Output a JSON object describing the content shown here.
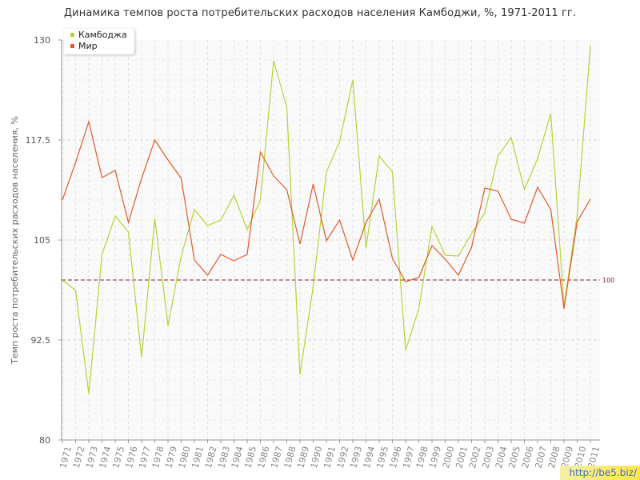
{
  "title": "Динамика темпов роста потребительских расходов населения Камбоджи, %, 1971-2011 гг.",
  "watermark": "http://be5.biz/",
  "chart_data": {
    "type": "line",
    "title": "Динамика темпов роста потребительских расходов населения Камбоджи, %, 1971-2011 гг.",
    "xlabel": "",
    "ylabel": "Темп роста потребительских расходов населения, %",
    "ylim": [
      80,
      130
    ],
    "yticks": [
      80,
      92.5,
      105,
      117.5,
      130
    ],
    "ytick_labels": [
      "80",
      "92.5",
      "105",
      "117.5",
      "130"
    ],
    "reference_line": {
      "value": 100,
      "label": "100",
      "color": "#8b1a2a"
    },
    "grid": true,
    "legend": "top-left",
    "categories": [
      "1971",
      "1972",
      "1973",
      "1974",
      "1975",
      "1976",
      "1977",
      "1978",
      "1979",
      "1980",
      "1981",
      "1982",
      "1983",
      "1984",
      "1985",
      "1986",
      "1987",
      "1988",
      "1989",
      "1990",
      "1991",
      "1992",
      "1993",
      "1994",
      "1995",
      "1996",
      "1997",
      "1998",
      "1999",
      "2000",
      "2001",
      "2002",
      "2003",
      "2004",
      "2005",
      "2006",
      "2007",
      "2008",
      "2009",
      "2010",
      "2011"
    ],
    "series": [
      {
        "name": "Камбоджа",
        "color": "#b5d334",
        "values": [
          100,
          98.7,
          85.8,
          103.2,
          108,
          106,
          90.3,
          107.7,
          94.3,
          103,
          108.8,
          106.8,
          107.5,
          110.6,
          106.3,
          110,
          127.4,
          121.6,
          88.2,
          99.2,
          113.5,
          117.3,
          125,
          104,
          115.5,
          113.5,
          91.2,
          96.4,
          106.7,
          103.1,
          103,
          105.8,
          108.4,
          115.5,
          117.8,
          111.3,
          115.2,
          120.8,
          96.7,
          108.1,
          129.3
        ]
      },
      {
        "name": "Мир",
        "color": "#e05a2b",
        "values": [
          110,
          114.7,
          119.8,
          112.8,
          113.7,
          107.2,
          112.7,
          117.5,
          115,
          112.7,
          102.5,
          100.6,
          103.2,
          102.4,
          103.2,
          116,
          113,
          111.3,
          104.5,
          112,
          104.9,
          107.5,
          102.5,
          107.2,
          110.1,
          102.7,
          99.8,
          100.3,
          104.3,
          102.6,
          100.6,
          104.1,
          111.5,
          111.1,
          107.6,
          107.1,
          111.6,
          108.8,
          96.4,
          107.3,
          110.1
        ]
      }
    ]
  }
}
